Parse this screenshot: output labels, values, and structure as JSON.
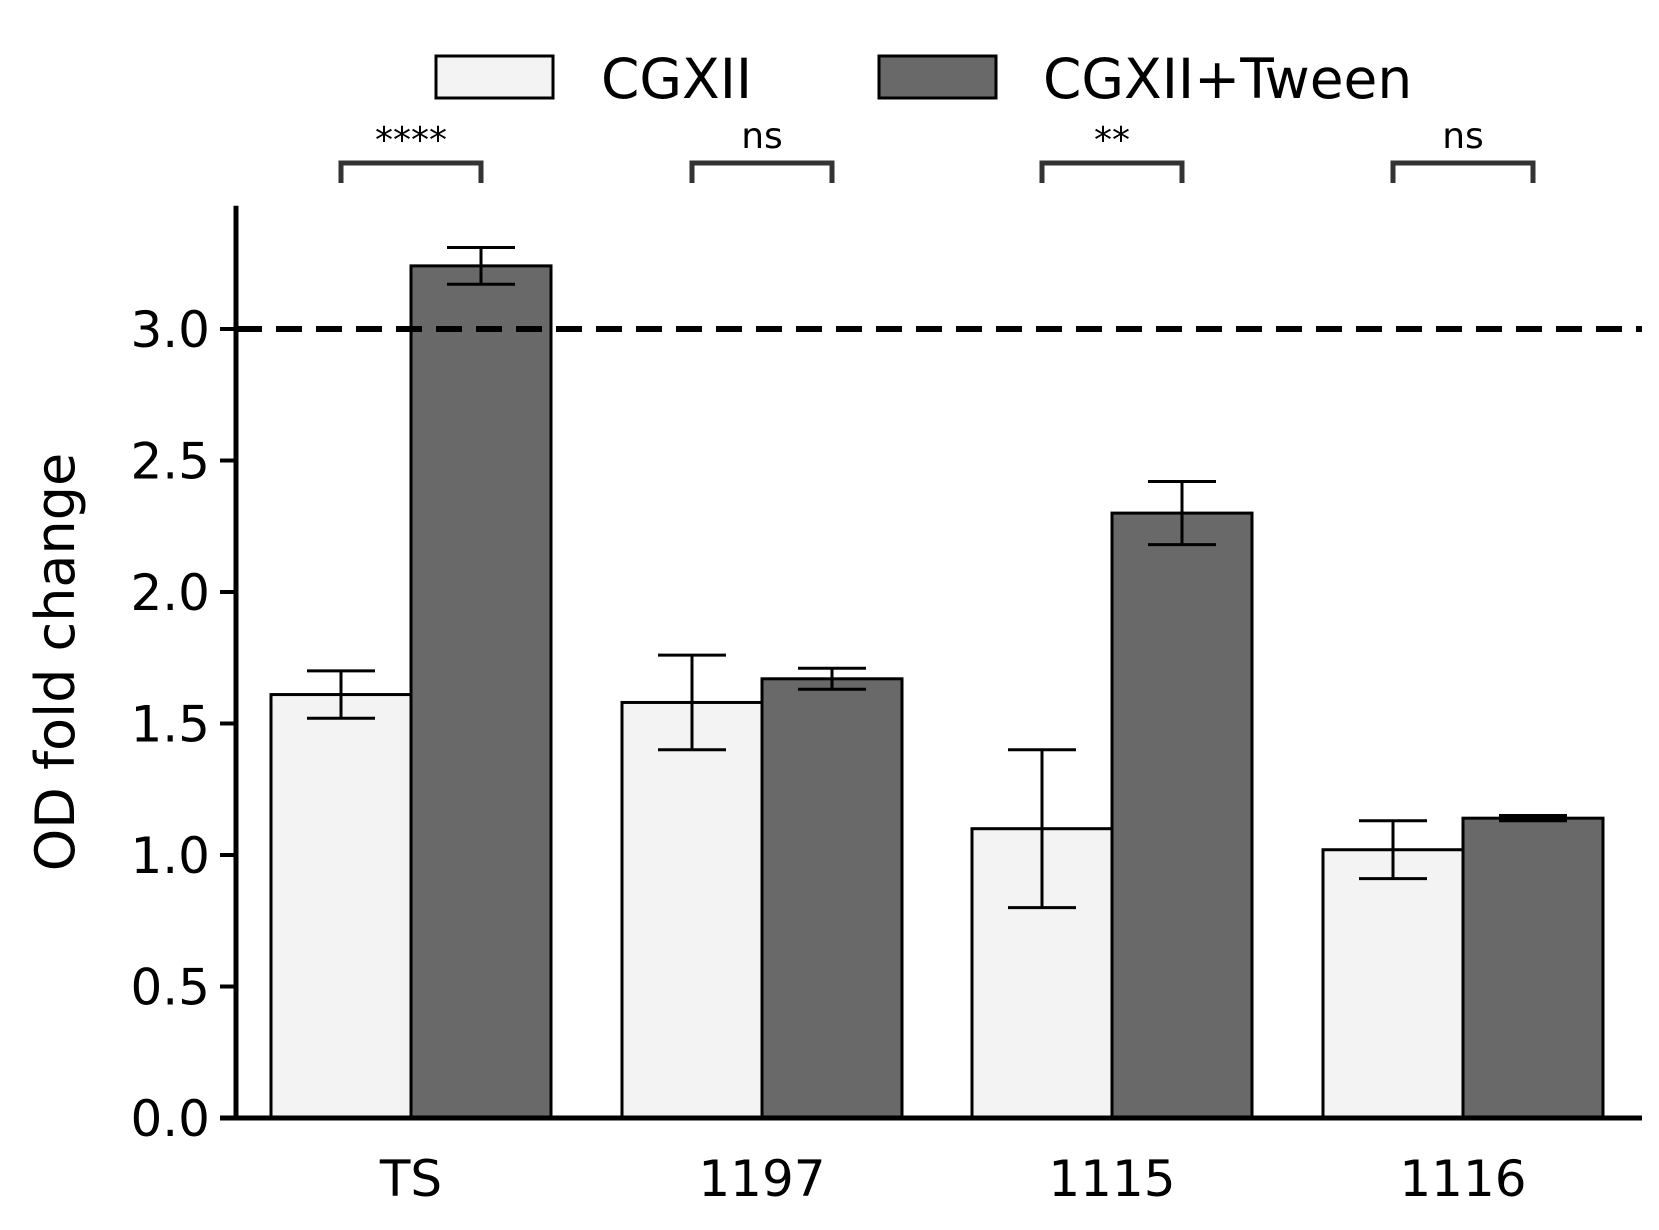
{
  "chart_data": {
    "type": "bar",
    "categories": [
      "TS",
      "1197",
      "1115",
      "1116"
    ],
    "series": [
      {
        "name": "CGXII",
        "color": "#f3f3f3",
        "values": [
          1.61,
          1.58,
          1.1,
          1.02
        ],
        "errors": [
          0.09,
          0.18,
          0.3,
          0.11
        ]
      },
      {
        "name": "CGXII+Tween",
        "color": "#696969",
        "values": [
          3.24,
          1.67,
          2.3,
          1.14
        ],
        "errors": [
          0.07,
          0.04,
          0.12,
          0.01
        ]
      }
    ],
    "ylabel": "OD fold change",
    "xlabel": "",
    "ylim": [
      0,
      3.4
    ],
    "yticks": [
      "0.0",
      "0.5",
      "1.0",
      "1.5",
      "2.0",
      "2.5",
      "3.0"
    ],
    "reference_line": {
      "y": 3.0,
      "style": "dashed"
    },
    "significance": [
      "****",
      "ns",
      "**",
      "ns"
    ],
    "legend_position": "top",
    "grid": false
  }
}
